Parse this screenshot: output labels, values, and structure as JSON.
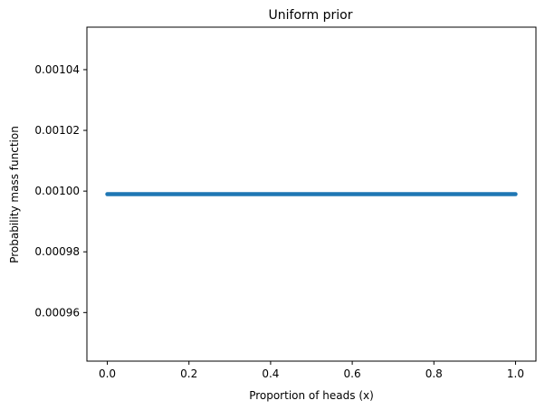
{
  "chart_data": {
    "type": "line",
    "title": "Uniform prior",
    "xlabel": "Proportion of heads (x)",
    "ylabel": "Probability mass function",
    "x_range": [
      0.0,
      1.0
    ],
    "y_value": 0.000999,
    "xlim": [
      -0.05,
      1.05
    ],
    "ylim": [
      0.000944,
      0.001054
    ],
    "xticks": [
      0.0,
      0.2,
      0.4,
      0.6,
      0.8,
      1.0
    ],
    "xtick_labels": [
      "0.0",
      "0.2",
      "0.4",
      "0.6",
      "0.8",
      "1.0"
    ],
    "yticks": [
      0.00096,
      0.00098,
      0.001,
      0.00102,
      0.00104
    ],
    "ytick_labels": [
      "0.00096",
      "0.00098",
      "0.00100",
      "0.00102",
      "0.00104"
    ],
    "grid": false,
    "series_color": "#1f77b4"
  }
}
